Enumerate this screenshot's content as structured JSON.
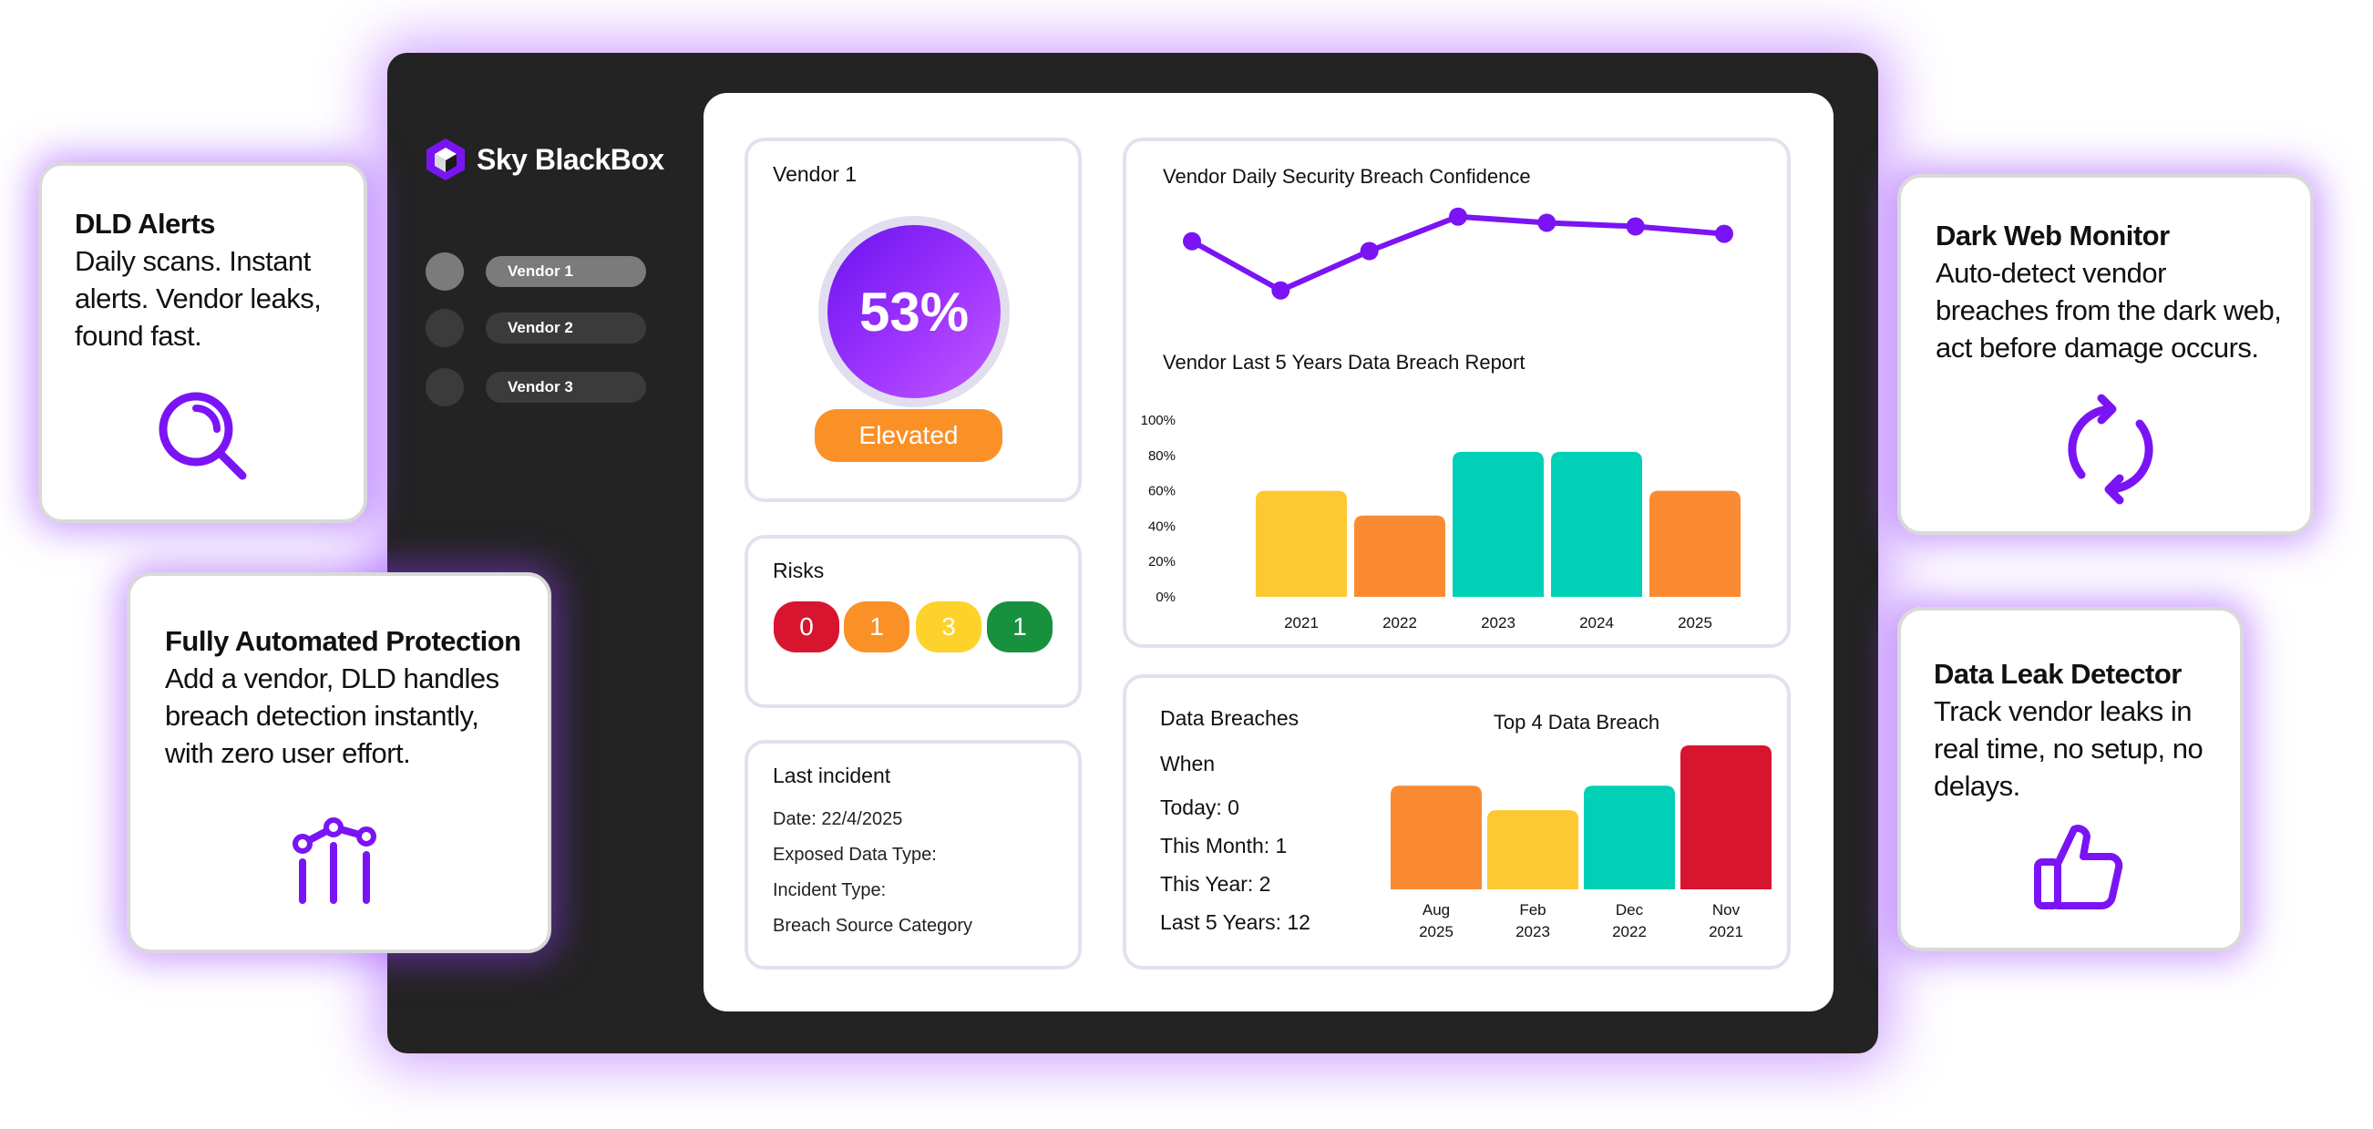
{
  "brand": {
    "name": "Sky BlackBox"
  },
  "sidebar": {
    "items": [
      {
        "label": "Vendor 1",
        "active": true
      },
      {
        "label": "Vendor 2",
        "active": false
      },
      {
        "label": "Vendor 3",
        "active": false
      }
    ]
  },
  "vendor_card": {
    "title": "Vendor 1",
    "score": "53%",
    "level": "Elevated"
  },
  "risks": {
    "title": "Risks",
    "items": [
      {
        "value": "0",
        "color": "#d8152f"
      },
      {
        "value": "1",
        "color": "#fa9127"
      },
      {
        "value": "3",
        "color": "#fdd22b"
      },
      {
        "value": "1",
        "color": "#18913f"
      }
    ]
  },
  "last_incident": {
    "title": "Last incident",
    "date": "Date: 22/4/2025",
    "exposed": "Exposed Data Type:",
    "incident_type": "Incident Type:",
    "source": "Breach Source Category"
  },
  "data_breaches": {
    "title": "Data Breaches",
    "when": "When",
    "today": "Today: 0",
    "month": "This Month: 1",
    "year": "This Year: 2",
    "five_years": "Last 5 Years: 12"
  },
  "colors": {
    "accent": "#7a14f5",
    "orange": "#fa9127",
    "yellow": "#fdd22b",
    "teal": "#00d0b6",
    "red": "#d8152f"
  },
  "chart_data": [
    {
      "type": "line",
      "title": "Vendor Daily Security Breach Confidence",
      "values": [
        78,
        38,
        70,
        98,
        93,
        90,
        84
      ],
      "ylim": [
        0,
        100
      ]
    },
    {
      "type": "bar",
      "title": "Vendor Last 5 Years Data Breach Report",
      "categories": [
        "2021",
        "2022",
        "2023",
        "2024",
        "2025"
      ],
      "values": [
        60,
        46,
        82,
        82,
        60
      ],
      "bar_colors": [
        "#fdc932",
        "#fa8b33",
        "#00d0b6",
        "#00d0b6",
        "#fa8b33"
      ],
      "yticks": [
        "100%",
        "80%",
        "60%",
        "40%",
        "20%",
        "0%"
      ],
      "ylim": [
        0,
        100
      ]
    },
    {
      "type": "bar",
      "title": "Top 4 Data Breach",
      "categories": [
        [
          "Aug",
          "2025"
        ],
        [
          "Feb",
          "2023"
        ],
        [
          "Dec",
          "2022"
        ],
        [
          "Nov",
          "2021"
        ]
      ],
      "values": [
        72,
        55,
        72,
        100
      ],
      "bar_colors": [
        "#fa8b33",
        "#fdc932",
        "#00d0b6",
        "#d8152f"
      ],
      "ylim": [
        0,
        100
      ]
    }
  ],
  "features": {
    "dld_alerts": {
      "title": "DLD Alerts",
      "lines": [
        "Daily scans. Instant",
        "alerts. Vendor leaks,",
        "found fast."
      ]
    },
    "automated": {
      "title": "Fully Automated Protection",
      "lines": [
        "Add a vendor, DLD handles",
        "breach detection instantly,",
        "with zero user effort."
      ]
    },
    "dark_web": {
      "title": "Dark Web Monitor",
      "lines": [
        "Auto-detect vendor",
        "breaches from the dark web,",
        "act before damage occurs."
      ]
    },
    "leak_detector": {
      "title": "Data Leak Detector",
      "lines": [
        "Track vendor leaks in",
        "real time, no setup, no",
        "delays."
      ]
    }
  }
}
